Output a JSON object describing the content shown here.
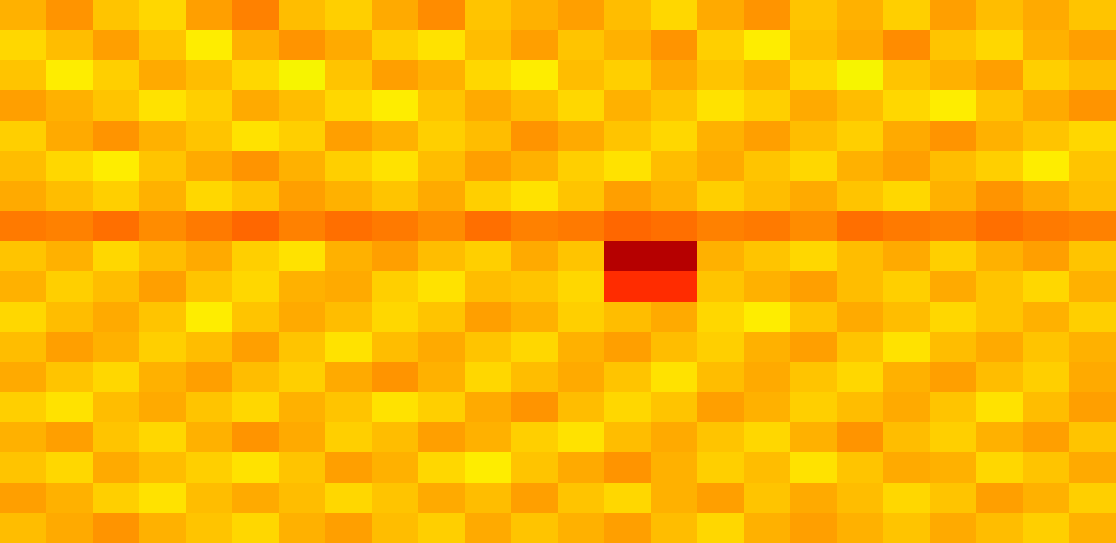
{
  "chart_data": {
    "type": "heatmap",
    "color": "jet",
    "tick_labels": false,
    "value_range": [
      0,
      100
    ],
    "cells": [
      [
        72,
        75,
        70,
        68,
        74,
        77,
        71,
        69,
        73,
        76,
        70,
        72,
        74,
        71,
        68,
        73,
        75,
        70,
        72,
        69,
        74,
        71,
        73,
        70
      ],
      [
        68,
        71,
        74,
        70,
        66,
        72,
        75,
        73,
        69,
        67,
        71,
        74,
        70,
        72,
        75,
        69,
        66,
        71,
        73,
        76,
        70,
        68,
        72,
        74
      ],
      [
        70,
        66,
        69,
        73,
        71,
        68,
        65,
        70,
        74,
        72,
        68,
        66,
        71,
        69,
        73,
        70,
        72,
        68,
        65,
        70,
        72,
        74,
        69,
        71
      ],
      [
        74,
        72,
        70,
        67,
        69,
        73,
        71,
        68,
        66,
        70,
        73,
        71,
        68,
        72,
        70,
        67,
        69,
        73,
        71,
        68,
        66,
        70,
        73,
        75
      ],
      [
        69,
        73,
        75,
        72,
        70,
        67,
        69,
        74,
        72,
        69,
        71,
        75,
        73,
        70,
        68,
        72,
        74,
        71,
        69,
        73,
        75,
        72,
        70,
        68
      ],
      [
        71,
        68,
        66,
        70,
        73,
        75,
        72,
        69,
        67,
        71,
        74,
        72,
        69,
        67,
        71,
        73,
        70,
        68,
        72,
        74,
        71,
        69,
        66,
        70
      ],
      [
        73,
        71,
        69,
        72,
        68,
        70,
        74,
        72,
        70,
        73,
        69,
        67,
        70,
        74,
        72,
        69,
        71,
        73,
        70,
        68,
        72,
        75,
        73,
        71
      ],
      [
        78,
        77,
        79,
        76,
        78,
        80,
        77,
        79,
        78,
        76,
        79,
        77,
        78,
        80,
        79,
        77,
        78,
        76,
        79,
        78,
        77,
        79,
        78,
        77
      ],
      [
        70,
        72,
        68,
        71,
        73,
        69,
        67,
        72,
        74,
        71,
        69,
        73,
        70,
        95,
        95,
        72,
        70,
        68,
        71,
        73,
        69,
        72,
        74,
        70
      ],
      [
        72,
        69,
        71,
        74,
        70,
        68,
        72,
        73,
        69,
        67,
        71,
        70,
        68,
        86,
        86,
        70,
        72,
        74,
        71,
        69,
        73,
        70,
        68,
        72
      ],
      [
        68,
        71,
        73,
        70,
        66,
        70,
        73,
        71,
        68,
        70,
        74,
        72,
        69,
        71,
        73,
        68,
        66,
        70,
        73,
        71,
        68,
        70,
        72,
        69
      ],
      [
        71,
        74,
        72,
        69,
        71,
        74,
        70,
        67,
        71,
        73,
        70,
        68,
        72,
        74,
        71,
        69,
        72,
        74,
        70,
        67,
        71,
        73,
        70,
        72
      ],
      [
        73,
        70,
        68,
        72,
        74,
        71,
        69,
        73,
        75,
        72,
        68,
        71,
        73,
        70,
        67,
        71,
        73,
        70,
        68,
        72,
        74,
        71,
        69,
        73
      ],
      [
        69,
        67,
        71,
        73,
        70,
        68,
        72,
        70,
        67,
        69,
        73,
        75,
        71,
        68,
        70,
        74,
        72,
        69,
        71,
        73,
        70,
        67,
        71,
        74
      ],
      [
        72,
        74,
        70,
        68,
        72,
        75,
        73,
        69,
        71,
        74,
        72,
        69,
        67,
        71,
        73,
        70,
        68,
        72,
        75,
        71,
        69,
        72,
        74,
        70
      ],
      [
        70,
        68,
        73,
        71,
        69,
        67,
        70,
        74,
        72,
        68,
        66,
        70,
        73,
        75,
        72,
        69,
        71,
        67,
        70,
        73,
        72,
        68,
        70,
        73
      ],
      [
        74,
        72,
        69,
        67,
        71,
        73,
        71,
        68,
        70,
        73,
        71,
        74,
        70,
        68,
        72,
        74,
        70,
        73,
        71,
        68,
        70,
        74,
        72,
        69
      ],
      [
        71,
        73,
        75,
        72,
        70,
        68,
        72,
        74,
        71,
        69,
        73,
        70,
        72,
        74,
        71,
        68,
        72,
        74,
        72,
        70,
        73,
        71,
        69,
        72
      ]
    ]
  }
}
